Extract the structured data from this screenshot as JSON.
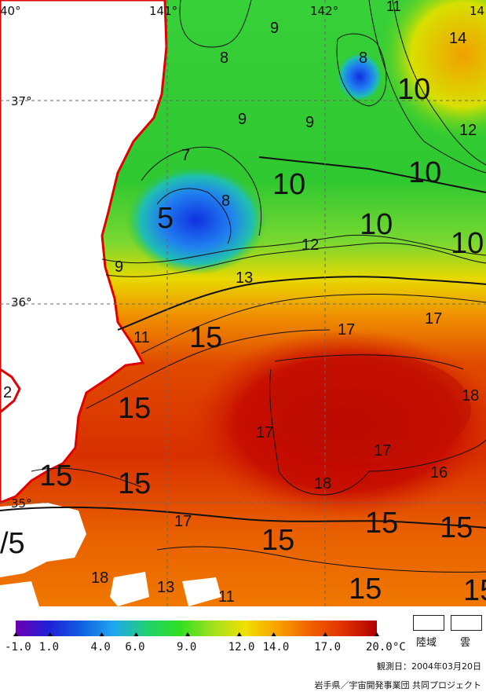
{
  "map": {
    "lon_labels": [
      "40°",
      "141°",
      "142°",
      "14"
    ],
    "lat_labels": [
      "37°",
      "36°",
      "35°"
    ],
    "contour_labels": [
      {
        "text": "8",
        "size": "s"
      },
      {
        "text": "9",
        "size": "s"
      },
      {
        "text": "8",
        "size": "s"
      },
      {
        "text": "14",
        "size": "s"
      },
      {
        "text": "11",
        "size": "s"
      },
      {
        "text": "10",
        "size": "l"
      },
      {
        "text": "9",
        "size": "s"
      },
      {
        "text": "9",
        "size": "s"
      },
      {
        "text": "12",
        "size": "s"
      },
      {
        "text": "7",
        "size": "s"
      },
      {
        "text": "10",
        "size": "l"
      },
      {
        "text": "10",
        "size": "l"
      },
      {
        "text": "8",
        "size": "s"
      },
      {
        "text": "5",
        "size": "l"
      },
      {
        "text": "10",
        "size": "l"
      },
      {
        "text": "12",
        "size": "s"
      },
      {
        "text": "10",
        "size": "l"
      },
      {
        "text": "9",
        "size": "s"
      },
      {
        "text": "13",
        "size": "s"
      },
      {
        "text": "11",
        "size": "s"
      },
      {
        "text": "15",
        "size": "l"
      },
      {
        "text": "17",
        "size": "s"
      },
      {
        "text": "17",
        "size": "s"
      },
      {
        "text": "2",
        "size": "s"
      },
      {
        "text": "15",
        "size": "l"
      },
      {
        "text": "18",
        "size": "s"
      },
      {
        "text": "17",
        "size": "s"
      },
      {
        "text": "17",
        "size": "s"
      },
      {
        "text": "15",
        "size": "l"
      },
      {
        "text": "15",
        "size": "l"
      },
      {
        "text": "18",
        "size": "s"
      },
      {
        "text": "16",
        "size": "s"
      },
      {
        "text": "17",
        "size": "s"
      },
      {
        "text": "15",
        "size": "l"
      },
      {
        "text": "15",
        "size": "l"
      },
      {
        "text": "15",
        "size": "l"
      },
      {
        "text": "/5",
        "size": "l"
      },
      {
        "text": "18",
        "size": "s"
      },
      {
        "text": "13",
        "size": "s"
      },
      {
        "text": "11",
        "size": "s"
      },
      {
        "text": "15",
        "size": "l"
      },
      {
        "text": "15",
        "size": "l"
      }
    ]
  },
  "legend": {
    "ticks": [
      "-1.0",
      "1.0",
      "4.0",
      "6.0",
      "9.0",
      "12.0",
      "14.0",
      "17.0",
      "20.0"
    ],
    "unit": "°C",
    "land_label": "陸域",
    "cloud_label": "雲",
    "colors": [
      "#6a00b0",
      "#2020d8",
      "#1060e0",
      "#20a8f0",
      "#20d070",
      "#30e020",
      "#a0e020",
      "#f0e000",
      "#f8a000",
      "#f06000",
      "#e03000",
      "#b00000"
    ]
  },
  "footer": {
    "observation_date": "観測日：2004年03月20日",
    "credit": "岩手県／宇宙開発事業団 共同プロジェクト"
  }
}
